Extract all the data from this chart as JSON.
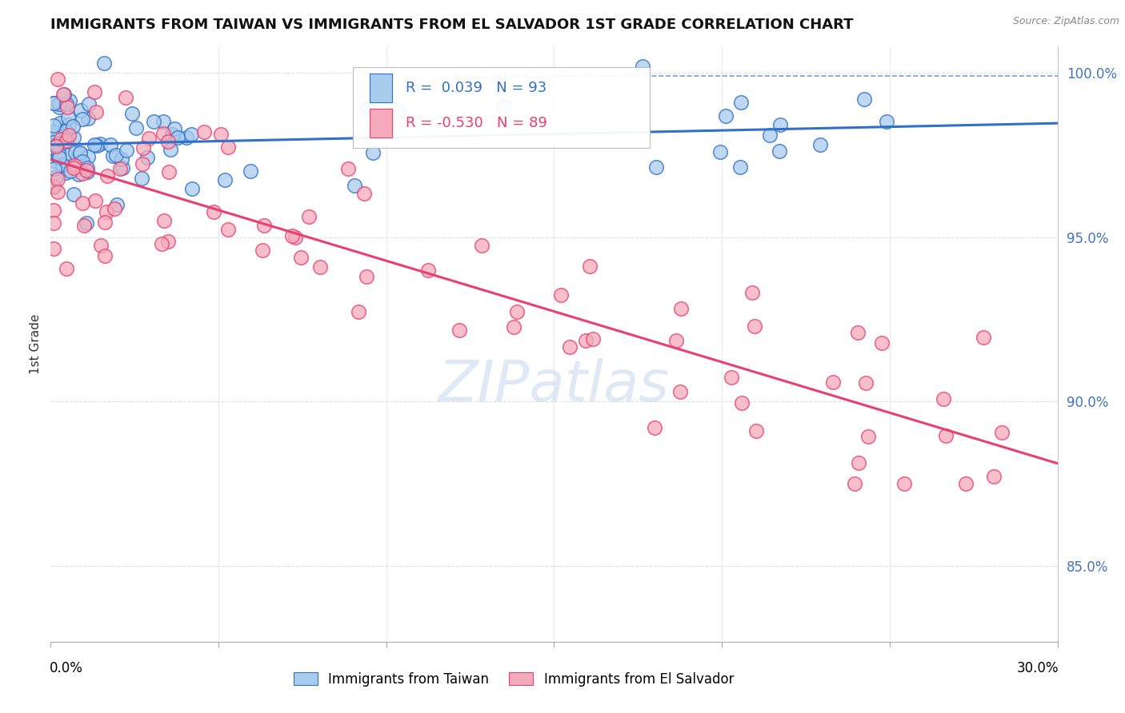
{
  "title": "IMMIGRANTS FROM TAIWAN VS IMMIGRANTS FROM EL SALVADOR 1ST GRADE CORRELATION CHART",
  "source": "Source: ZipAtlas.com",
  "ylabel": "1st Grade",
  "ylabel_right_ticks": [
    "85.0%",
    "90.0%",
    "95.0%",
    "100.0%"
  ],
  "ylabel_right_vals": [
    0.85,
    0.9,
    0.95,
    1.0
  ],
  "x_min": 0.0,
  "x_max": 0.3,
  "y_min": 0.827,
  "y_max": 1.008,
  "legend_taiwan_R": "0.039",
  "legend_taiwan_N": "93",
  "legend_salvador_R": "-0.530",
  "legend_salvador_N": "89",
  "color_taiwan_fill": "#A8CCEE",
  "color_salvador_fill": "#F5AABB",
  "color_taiwan_line": "#3070C8",
  "color_salvador_line": "#E84070",
  "color_right_axis": "#4472C4",
  "color_grid": "#DDDDDD",
  "watermark_color": "#C5D8EE",
  "taiwan_seed": 42,
  "salvador_seed": 99
}
